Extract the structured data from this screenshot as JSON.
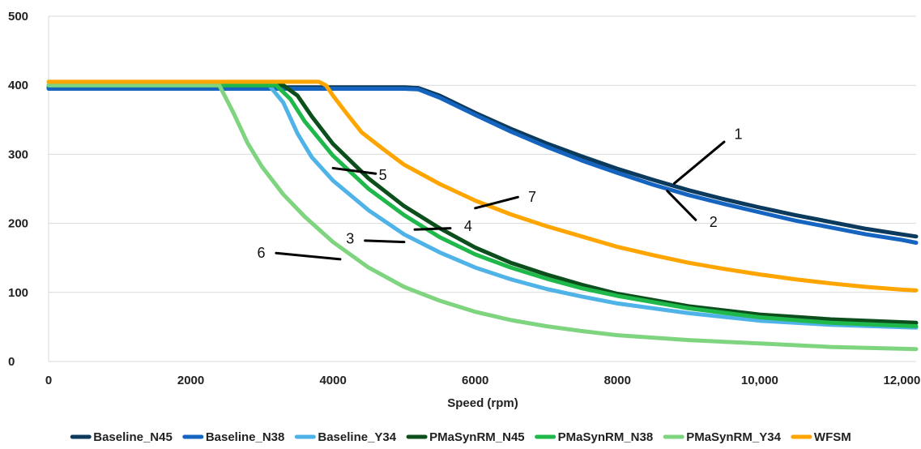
{
  "chart_data": {
    "type": "line",
    "title": "",
    "xlabel": "Speed (rpm)",
    "ylabel": "",
    "xlim": [
      0,
      12200
    ],
    "ylim": [
      0,
      500
    ],
    "x_ticks": [
      {
        "value": 0,
        "label": "0"
      },
      {
        "value": 2000,
        "label": "2000"
      },
      {
        "value": 4000,
        "label": "4000"
      },
      {
        "value": 6000,
        "label": "6000"
      },
      {
        "value": 8000,
        "label": "8000"
      },
      {
        "value": 10000,
        "label": "10,000"
      },
      {
        "value": 12000,
        "label": "12,000"
      }
    ],
    "y_ticks": [
      {
        "value": 0,
        "label": "0"
      },
      {
        "value": 100,
        "label": "100"
      },
      {
        "value": 200,
        "label": "200"
      },
      {
        "value": 300,
        "label": "300"
      },
      {
        "value": 400,
        "label": "400"
      },
      {
        "value": 500,
        "label": "500"
      }
    ],
    "grid": {
      "horizontal": true,
      "vertical": false
    },
    "legend_position": "bottom",
    "series": [
      {
        "name": "Baseline_N45",
        "color": "#0b3a5c",
        "points": [
          [
            0,
            397
          ],
          [
            5000,
            397
          ],
          [
            5200,
            396
          ],
          [
            5500,
            385
          ],
          [
            6000,
            360
          ],
          [
            6500,
            337
          ],
          [
            7000,
            316
          ],
          [
            7500,
            297
          ],
          [
            8000,
            279
          ],
          [
            8500,
            263
          ],
          [
            9000,
            248
          ],
          [
            9500,
            235
          ],
          [
            10000,
            223
          ],
          [
            10500,
            212
          ],
          [
            11000,
            202
          ],
          [
            11500,
            192
          ],
          [
            12000,
            184
          ],
          [
            12200,
            181
          ]
        ]
      },
      {
        "name": "Baseline_N38",
        "color": "#1565c0",
        "points": [
          [
            0,
            395
          ],
          [
            5000,
            395
          ],
          [
            5200,
            394
          ],
          [
            5500,
            382
          ],
          [
            6000,
            357
          ],
          [
            6500,
            333
          ],
          [
            7000,
            311
          ],
          [
            7500,
            291
          ],
          [
            8000,
            273
          ],
          [
            8500,
            256
          ],
          [
            9000,
            241
          ],
          [
            9500,
            228
          ],
          [
            10000,
            216
          ],
          [
            10500,
            204
          ],
          [
            11000,
            194
          ],
          [
            11500,
            184
          ],
          [
            12000,
            176
          ],
          [
            12200,
            172
          ]
        ]
      },
      {
        "name": "Baseline_Y34",
        "color": "#4fb3e8",
        "points": [
          [
            0,
            400
          ],
          [
            3100,
            400
          ],
          [
            3300,
            375
          ],
          [
            3500,
            330
          ],
          [
            3700,
            296
          ],
          [
            4000,
            262
          ],
          [
            4500,
            219
          ],
          [
            5000,
            184
          ],
          [
            5500,
            158
          ],
          [
            6000,
            136
          ],
          [
            6500,
            119
          ],
          [
            7000,
            105
          ],
          [
            7500,
            94
          ],
          [
            8000,
            84
          ],
          [
            9000,
            70
          ],
          [
            10000,
            59
          ],
          [
            11000,
            53
          ],
          [
            12200,
            49
          ]
        ]
      },
      {
        "name": "PMaSynRM_N45",
        "color": "#0d4f1c",
        "points": [
          [
            0,
            400
          ],
          [
            3300,
            400
          ],
          [
            3500,
            385
          ],
          [
            3700,
            355
          ],
          [
            4000,
            315
          ],
          [
            4500,
            265
          ],
          [
            5000,
            225
          ],
          [
            5500,
            193
          ],
          [
            6000,
            165
          ],
          [
            6500,
            143
          ],
          [
            7000,
            126
          ],
          [
            7500,
            111
          ],
          [
            8000,
            98
          ],
          [
            9000,
            80
          ],
          [
            10000,
            68
          ],
          [
            11000,
            61
          ],
          [
            12200,
            56
          ]
        ]
      },
      {
        "name": "PMaSynRM_N38",
        "color": "#1fb84a",
        "points": [
          [
            0,
            400
          ],
          [
            3200,
            400
          ],
          [
            3400,
            380
          ],
          [
            3600,
            348
          ],
          [
            4000,
            298
          ],
          [
            4500,
            250
          ],
          [
            5000,
            212
          ],
          [
            5500,
            180
          ],
          [
            6000,
            155
          ],
          [
            6500,
            136
          ],
          [
            7000,
            120
          ],
          [
            7500,
            106
          ],
          [
            8000,
            95
          ],
          [
            9000,
            77
          ],
          [
            10000,
            64
          ],
          [
            11000,
            56
          ],
          [
            12200,
            51
          ]
        ]
      },
      {
        "name": "PMaSynRM_Y34",
        "color": "#7fd47f",
        "points": [
          [
            0,
            400
          ],
          [
            2400,
            400
          ],
          [
            2600,
            360
          ],
          [
            2800,
            316
          ],
          [
            3000,
            282
          ],
          [
            3300,
            242
          ],
          [
            3600,
            210
          ],
          [
            4000,
            173
          ],
          [
            4500,
            136
          ],
          [
            5000,
            108
          ],
          [
            5500,
            88
          ],
          [
            6000,
            72
          ],
          [
            6500,
            60
          ],
          [
            7000,
            51
          ],
          [
            7500,
            44
          ],
          [
            8000,
            38
          ],
          [
            9000,
            31
          ],
          [
            10000,
            26
          ],
          [
            11000,
            21
          ],
          [
            12200,
            18
          ]
        ]
      },
      {
        "name": "WFSM",
        "color": "#ffa500",
        "points": [
          [
            0,
            405
          ],
          [
            3800,
            405
          ],
          [
            3900,
            400
          ],
          [
            4000,
            385
          ],
          [
            4200,
            358
          ],
          [
            4400,
            332
          ],
          [
            4700,
            308
          ],
          [
            5000,
            285
          ],
          [
            5500,
            257
          ],
          [
            6000,
            233
          ],
          [
            6500,
            213
          ],
          [
            7000,
            196
          ],
          [
            7500,
            181
          ],
          [
            8000,
            166
          ],
          [
            8500,
            154
          ],
          [
            9000,
            143
          ],
          [
            9500,
            134
          ],
          [
            10000,
            126
          ],
          [
            10500,
            119
          ],
          [
            11000,
            113
          ],
          [
            11500,
            108
          ],
          [
            12000,
            104
          ],
          [
            12200,
            103
          ]
        ]
      }
    ],
    "annotations": [
      {
        "label": "1",
        "text_at": [
          9700,
          322
        ],
        "line_from": [
          9500,
          318
        ],
        "line_to": [
          8800,
          258
        ]
      },
      {
        "label": "2",
        "text_at": [
          9350,
          195
        ],
        "line_from": [
          9100,
          205
        ],
        "line_to": [
          8700,
          247
        ]
      },
      {
        "label": "3",
        "text_at": [
          4240,
          171
        ],
        "line_from": [
          4450,
          175
        ],
        "line_to": [
          5000,
          173
        ]
      },
      {
        "label": "4",
        "text_at": [
          5900,
          189
        ],
        "line_from": [
          5650,
          193
        ],
        "line_to": [
          5150,
          191
        ]
      },
      {
        "label": "5",
        "text_at": [
          4700,
          263
        ],
        "line_from": [
          4600,
          272
        ],
        "line_to": [
          4000,
          280
        ]
      },
      {
        "label": "6",
        "text_at": [
          2990,
          150
        ],
        "line_from": [
          3200,
          157
        ],
        "line_to": [
          4100,
          148
        ]
      },
      {
        "label": "7",
        "text_at": [
          6800,
          231
        ],
        "line_from": [
          6600,
          238
        ],
        "line_to": [
          6000,
          222
        ]
      }
    ]
  }
}
